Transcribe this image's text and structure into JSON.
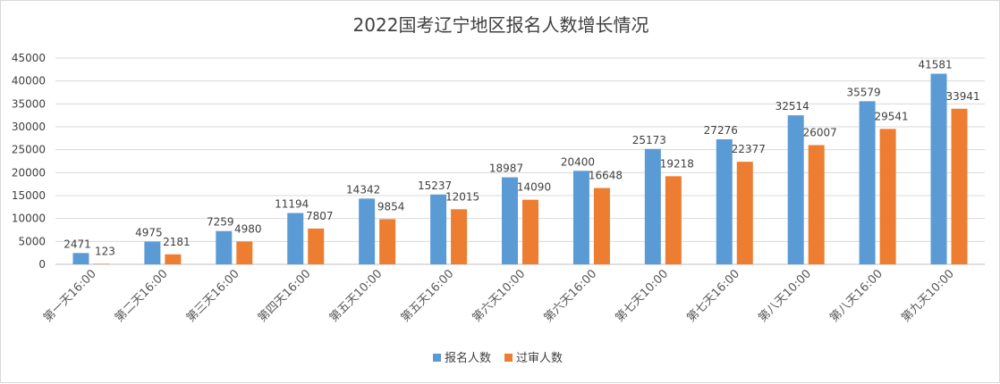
{
  "chart_data": {
    "type": "bar",
    "title": "2022国考辽宁地区报名人数增长情况",
    "categories": [
      "第一天16:00",
      "第二天16:00",
      "第三天16:00",
      "第四天16:00",
      "第五天10:00",
      "第五天16:00",
      "第六天10:00",
      "第六天16:00",
      "第七天10:00",
      "第七天16:00",
      "第八天10:00",
      "第八天16:00",
      "第九天10:00"
    ],
    "series": [
      {
        "name": "报名人数",
        "color": "#5b9bd5",
        "values": [
          2471,
          4975,
          7259,
          11194,
          14342,
          15237,
          18987,
          20400,
          25173,
          27276,
          32514,
          35579,
          41581
        ]
      },
      {
        "name": "过审人数",
        "color": "#ed7d31",
        "values": [
          123,
          2181,
          4980,
          7807,
          9854,
          12015,
          14090,
          16648,
          19218,
          22377,
          26007,
          29541,
          33941
        ]
      }
    ],
    "ylim": [
      0,
      45000
    ],
    "yticks": [
      0,
      5000,
      10000,
      15000,
      20000,
      25000,
      30000,
      35000,
      40000,
      45000
    ],
    "grid": true,
    "legend_position": "bottom"
  }
}
